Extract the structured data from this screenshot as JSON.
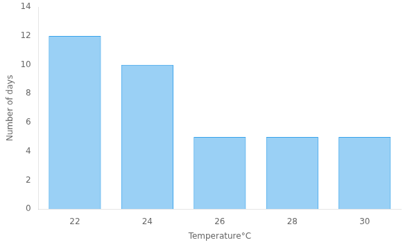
{
  "chart_data": {
    "type": "bar",
    "categories": [
      "22",
      "24",
      "26",
      "28",
      "30"
    ],
    "values": [
      12,
      10,
      5,
      5,
      5
    ],
    "xlabel": "Temperature°C",
    "ylabel": "Number of days",
    "ylim": [
      0,
      14
    ],
    "yticks": [
      0,
      2,
      4,
      6,
      8,
      10,
      12,
      14
    ],
    "grid": false
  }
}
